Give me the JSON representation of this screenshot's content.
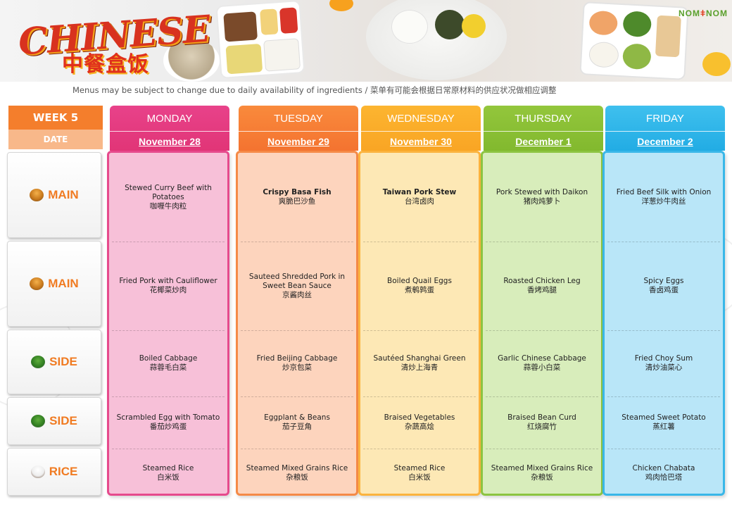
{
  "banner": {
    "logo_en": "CHINESE",
    "logo_cn": "中餐盒饭",
    "brand_left": "NOM",
    "brand_right": "NOM"
  },
  "notice": "Menus may be subject to change due to daily availability  of ingredients / 菜单有可能会根据日常原材料的供应状况做相应调整",
  "week_label": "WEEK 5",
  "date_label": "DATE",
  "row_labels": [
    {
      "label": "MAIN",
      "icon": "fried-food-bowl-icon"
    },
    {
      "label": "MAIN",
      "icon": "fried-food-bowl-icon"
    },
    {
      "label": "SIDE",
      "icon": "vegetable-bowl-icon"
    },
    {
      "label": "SIDE",
      "icon": "vegetable-bowl-icon"
    },
    {
      "label": "RICE",
      "icon": "rice-bowl-icon"
    }
  ],
  "days": [
    {
      "name": "MONDAY",
      "date": "November 28",
      "colors": {
        "head_top": "#e8428a",
        "head_bottom": "#e13577",
        "body": "#f7c0d8",
        "border": "#e64a8d"
      },
      "items": [
        {
          "en": "Stewed Curry Beef  with Potatoes",
          "cn": "咖喱牛肉粒",
          "bold": false
        },
        {
          "en": "Fried Pork with Cauliflower",
          "cn": "花椰菜炒肉",
          "bold": false
        },
        {
          "en": "Boiled Cabbage",
          "cn": "蒜蓉毛白菜",
          "bold": false
        },
        {
          "en": "Scrambled Egg with Tomato",
          "cn": "番茄炒鸡蛋",
          "bold": false
        },
        {
          "en": "Steamed Rice",
          "cn": "白米饭",
          "bold": false
        }
      ]
    },
    {
      "name": "TUESDAY",
      "date": "November 29",
      "colors": {
        "head_top": "#f98a3c",
        "head_bottom": "#f47330",
        "body": "#fdd4bd",
        "border": "#f58a47"
      },
      "items": [
        {
          "en": "Crispy Basa Fish",
          "cn": "爽脆巴沙鱼",
          "bold": true
        },
        {
          "en": "Sauteed Shredded Pork in Sweet Bean Sauce",
          "cn": "京酱肉丝",
          "bold": false
        },
        {
          "en": "Fried Beijing Cabbage",
          "cn": "炒京包菜",
          "bold": false
        },
        {
          "en": "Eggplant & Beans",
          "cn": "茄子豆角",
          "bold": false
        },
        {
          "en": "Steamed Mixed Grains Rice",
          "cn": "杂粮饭",
          "bold": false
        }
      ]
    },
    {
      "name": "WEDNESDAY",
      "date": "November 30",
      "colors": {
        "head_top": "#fcb530",
        "head_bottom": "#f9a524",
        "body": "#fde8b5",
        "border": "#fbb33e"
      },
      "items": [
        {
          "en": "Taiwan Pork Stew",
          "cn": "台湾卤肉",
          "bold": true
        },
        {
          "en": "Boiled Quail Eggs",
          "cn": "煮鹌鹑蛋",
          "bold": false
        },
        {
          "en": "Sautéed Shanghai Green",
          "cn": "清炒上海青",
          "bold": false
        },
        {
          "en": "Braised Vegetables",
          "cn": "杂蔬高烩",
          "bold": false
        },
        {
          "en": "Steamed Rice",
          "cn": "白米饭",
          "bold": false
        }
      ]
    },
    {
      "name": "THURSDAY",
      "date": "December 1",
      "colors": {
        "head_top": "#93c63c",
        "head_bottom": "#82b92e",
        "body": "#d8edbb",
        "border": "#8cc441"
      },
      "items": [
        {
          "en": "Pork Stewed with Daikon",
          "cn": "猪肉炖萝卜",
          "bold": false
        },
        {
          "en": "Roasted Chicken Leg",
          "cn": "香烤鸡腿",
          "bold": false
        },
        {
          "en": "Garlic Chinese Cabbage",
          "cn": "蒜蓉小白菜",
          "bold": false
        },
        {
          "en": "Braised Bean Curd",
          "cn": "红烧腐竹",
          "bold": false
        },
        {
          "en": "Steamed Mixed Grains Rice",
          "cn": "杂粮饭",
          "bold": false
        }
      ]
    },
    {
      "name": "FRIDAY",
      "date": "December 2",
      "colors": {
        "head_top": "#3fc0ee",
        "head_bottom": "#22ace4",
        "body": "#b9e6f8",
        "border": "#39b7e8"
      },
      "items": [
        {
          "en": "Fried Beef Silk with Onion",
          "cn": "洋葱炒牛肉丝",
          "bold": false
        },
        {
          "en": "Spicy Eggs",
          "cn": "香卤鸡蛋",
          "bold": false
        },
        {
          "en": "Fried Choy Sum",
          "cn": "清炒油菜心",
          "bold": false
        },
        {
          "en": "Steamed Sweet Potato",
          "cn": "蒸红薯",
          "bold": false
        },
        {
          "en": "Chicken  Chabata",
          "cn": "鸡肉恰巴塔",
          "bold": false
        }
      ]
    }
  ]
}
